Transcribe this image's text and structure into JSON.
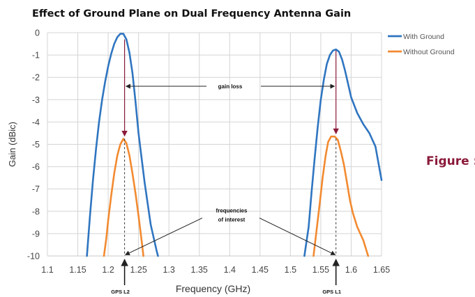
{
  "chart_data": {
    "type": "line",
    "title": "Effect of Ground Plane on Dual Frequency Antenna Gain",
    "xlabel": "Frequency (GHz)",
    "ylabel": "Gain (dBic)",
    "xlim": [
      1.1,
      1.65
    ],
    "ylim": [
      -10,
      0
    ],
    "x_ticks": [
      1.1,
      1.15,
      1.2,
      1.25,
      1.3,
      1.35,
      1.4,
      1.45,
      1.5,
      1.55,
      1.6,
      1.65
    ],
    "x_tick_labels": [
      "1.1",
      "1.15",
      "1.2",
      "1.25",
      "1.3",
      "1.35",
      "1.4",
      "1.45",
      "1.5",
      "1.55",
      "1.6",
      "1.65"
    ],
    "y_ticks": [
      0,
      -1,
      -2,
      -3,
      -4,
      -5,
      -6,
      -7,
      -8,
      -9,
      -10
    ],
    "y_tick_labels": [
      "0",
      "-1",
      "-2",
      "-3",
      "-4",
      "-5",
      "-6",
      "-7",
      "-8",
      "-9",
      "-10"
    ],
    "grid": true,
    "legend_position": "top-right",
    "series": [
      {
        "name": "With Ground",
        "color": "#2f75c0",
        "segments": [
          [
            [
              1.165,
              -10
            ],
            [
              1.17,
              -8.2
            ],
            [
              1.175,
              -6.6
            ],
            [
              1.18,
              -5.2
            ],
            [
              1.185,
              -4.0
            ],
            [
              1.19,
              -3.0
            ],
            [
              1.195,
              -2.2
            ],
            [
              1.2,
              -1.5
            ],
            [
              1.205,
              -0.95
            ],
            [
              1.21,
              -0.5
            ],
            [
              1.215,
              -0.2
            ],
            [
              1.22,
              -0.05
            ],
            [
              1.225,
              -0.05
            ],
            [
              1.23,
              -0.3
            ],
            [
              1.235,
              -0.9
            ],
            [
              1.24,
              -1.8
            ],
            [
              1.245,
              -3.1
            ],
            [
              1.25,
              -4.5
            ],
            [
              1.26,
              -6.7
            ],
            [
              1.27,
              -8.6
            ],
            [
              1.28,
              -9.8
            ],
            [
              1.282,
              -10
            ]
          ],
          [
            [
              1.523,
              -10
            ],
            [
              1.53,
              -8.7
            ],
            [
              1.535,
              -7.1
            ],
            [
              1.54,
              -5.6
            ],
            [
              1.545,
              -4.2
            ],
            [
              1.55,
              -3.0
            ],
            [
              1.555,
              -2.1
            ],
            [
              1.56,
              -1.4
            ],
            [
              1.565,
              -1.0
            ],
            [
              1.57,
              -0.8
            ],
            [
              1.575,
              -0.75
            ],
            [
              1.58,
              -0.85
            ],
            [
              1.585,
              -1.2
            ],
            [
              1.59,
              -1.7
            ],
            [
              1.595,
              -2.3
            ],
            [
              1.6,
              -2.9
            ],
            [
              1.61,
              -3.6
            ],
            [
              1.62,
              -4.1
            ],
            [
              1.63,
              -4.5
            ],
            [
              1.64,
              -5.1
            ],
            [
              1.65,
              -6.6
            ]
          ]
        ]
      },
      {
        "name": "Without Ground",
        "color": "#f28a30",
        "segments": [
          [
            [
              1.193,
              -10
            ],
            [
              1.197,
              -9.2
            ],
            [
              1.2,
              -8.4
            ],
            [
              1.205,
              -7.3
            ],
            [
              1.21,
              -6.3
            ],
            [
              1.215,
              -5.5
            ],
            [
              1.22,
              -5.0
            ],
            [
              1.225,
              -4.75
            ],
            [
              1.23,
              -4.95
            ],
            [
              1.235,
              -5.5
            ],
            [
              1.24,
              -6.3
            ],
            [
              1.245,
              -7.2
            ],
            [
              1.25,
              -8.2
            ],
            [
              1.255,
              -9.3
            ],
            [
              1.258,
              -10
            ]
          ],
          [
            [
              1.538,
              -10
            ],
            [
              1.542,
              -9.1
            ],
            [
              1.548,
              -7.7
            ],
            [
              1.553,
              -6.5
            ],
            [
              1.558,
              -5.5
            ],
            [
              1.562,
              -4.9
            ],
            [
              1.567,
              -4.65
            ],
            [
              1.573,
              -4.65
            ],
            [
              1.578,
              -4.8
            ],
            [
              1.583,
              -5.3
            ],
            [
              1.588,
              -5.9
            ],
            [
              1.593,
              -6.7
            ],
            [
              1.598,
              -7.5
            ],
            [
              1.603,
              -8.1
            ],
            [
              1.61,
              -8.7
            ],
            [
              1.62,
              -9.3
            ],
            [
              1.628,
              -10
            ]
          ]
        ]
      }
    ],
    "annotations": {
      "gain_loss_label": "gain loss",
      "frequencies_label": "frequencies\nof interest",
      "markers": [
        {
          "label": "GPS L2",
          "x": 1.227
        },
        {
          "label": "GPS L1",
          "x": 1.575
        }
      ],
      "gain_loss_arrows": [
        {
          "x": 1.227,
          "from": -0.3,
          "to": -4.75
        },
        {
          "x": 1.575,
          "from": -0.8,
          "to": -4.65
        }
      ]
    }
  },
  "figure_label": "Figure :"
}
